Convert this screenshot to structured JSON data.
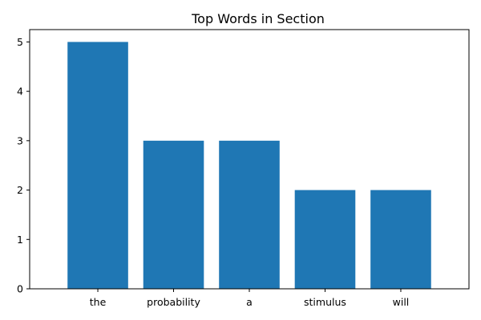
{
  "chart_data": {
    "type": "bar",
    "title": "Top Words in Section",
    "xlabel": "",
    "ylabel": "",
    "categories": [
      "the",
      "probability",
      "a",
      "stimulus",
      "will"
    ],
    "values": [
      5,
      3,
      3,
      2,
      2
    ],
    "ylim": [
      0,
      5.25
    ],
    "yticks": [
      "0",
      "1",
      "2",
      "3",
      "4",
      "5"
    ],
    "bar_color": "#1f77b4",
    "grid": false,
    "legend": "none"
  }
}
